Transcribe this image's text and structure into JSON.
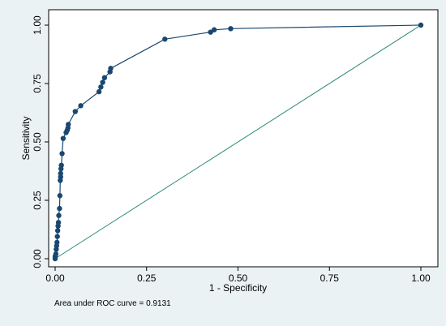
{
  "chart_data": {
    "type": "line",
    "title": "",
    "xlabel": "1 - Specificity",
    "ylabel": "Sensitivity",
    "xlim": [
      0,
      1
    ],
    "ylim": [
      0,
      1
    ],
    "x_ticks": [
      "0.00",
      "0.25",
      "0.50",
      "0.75",
      "1.00"
    ],
    "y_ticks": [
      "0.00",
      "0.25",
      "0.50",
      "0.75",
      "1.00"
    ],
    "grid": false,
    "legend": "none",
    "note": "Area under ROC curve = 0.9131",
    "series": [
      {
        "points": [
          [
            0.0,
            0.0
          ],
          [
            0.0,
            0.01
          ],
          [
            0.002,
            0.02
          ],
          [
            0.003,
            0.04
          ],
          [
            0.004,
            0.055
          ],
          [
            0.005,
            0.07
          ],
          [
            0.006,
            0.095
          ],
          [
            0.007,
            0.12
          ],
          [
            0.008,
            0.14
          ],
          [
            0.009,
            0.155
          ],
          [
            0.01,
            0.185
          ],
          [
            0.012,
            0.215
          ],
          [
            0.013,
            0.27
          ],
          [
            0.014,
            0.335
          ],
          [
            0.015,
            0.35
          ],
          [
            0.015,
            0.365
          ],
          [
            0.016,
            0.385
          ],
          [
            0.017,
            0.4
          ],
          [
            0.019,
            0.45
          ],
          [
            0.022,
            0.515
          ],
          [
            0.03,
            0.54
          ],
          [
            0.033,
            0.55
          ],
          [
            0.035,
            0.56
          ],
          [
            0.036,
            0.575
          ],
          [
            0.055,
            0.63
          ],
          [
            0.07,
            0.655
          ],
          [
            0.12,
            0.715
          ],
          [
            0.125,
            0.735
          ],
          [
            0.13,
            0.755
          ],
          [
            0.135,
            0.775
          ],
          [
            0.15,
            0.8
          ],
          [
            0.152,
            0.815
          ],
          [
            0.3,
            0.94
          ],
          [
            0.425,
            0.97
          ],
          [
            0.435,
            0.98
          ],
          [
            0.48,
            0.985
          ],
          [
            1.0,
            1.0
          ]
        ],
        "color": "#1a476f"
      },
      {
        "points": [
          [
            0,
            0
          ],
          [
            1,
            1
          ]
        ],
        "color": "#2e8a7a"
      }
    ]
  }
}
